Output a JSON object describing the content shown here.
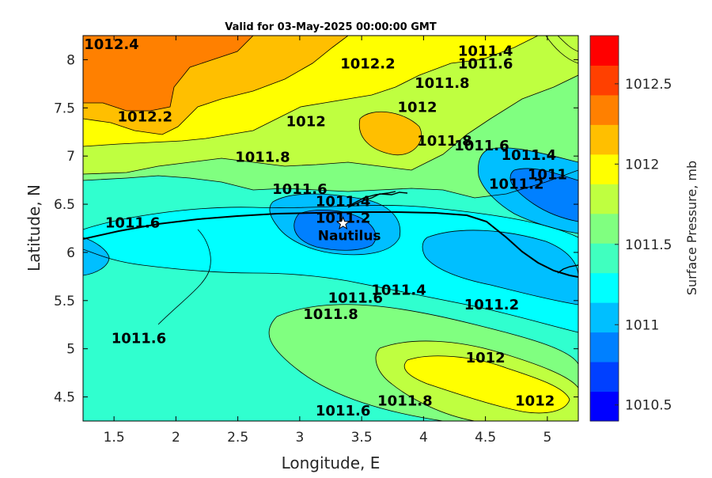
{
  "title": "Valid for 03-May-2025 00:00:00 GMT",
  "x_axis": {
    "label": "Longitude, E",
    "range": [
      1.25,
      5.25
    ],
    "ticks": [
      1.5,
      2,
      2.5,
      3,
      3.5,
      4,
      4.5,
      5
    ],
    "tick_labels": [
      "1.5",
      "2",
      "2.5",
      "3",
      "3.5",
      "4",
      "4.5",
      "5"
    ]
  },
  "y_axis": {
    "label": "Latitude, N",
    "range": [
      4.25,
      8.25
    ],
    "ticks": [
      4.5,
      5,
      5.5,
      6,
      6.5,
      7,
      7.5,
      8
    ],
    "tick_labels": [
      "4.5",
      "5",
      "5.5",
      "6",
      "6.5",
      "7",
      "7.5",
      "8"
    ]
  },
  "colorbar": {
    "label": "Surface Pressure, mb",
    "range": [
      1010.4,
      1012.8
    ],
    "ticks": [
      1010.5,
      1011,
      1011.5,
      1012,
      1012.5
    ],
    "tick_labels": [
      "1010.5",
      "1011",
      "1011.5",
      "1012",
      "1012.5"
    ],
    "colors": [
      "#0000ff",
      "#0040ff",
      "#0080ff",
      "#00bfff",
      "#00ffff",
      "#40ffbf",
      "#80ff80",
      "#bfff40",
      "#ffff00",
      "#ffbf00",
      "#ff8000",
      "#ff4000",
      "#ff0000"
    ]
  },
  "station": {
    "name": "Nautilus",
    "lon": 3.35,
    "lat": 6.3,
    "marker": "star-icon"
  },
  "contour_labels": [
    {
      "text": "1012.4",
      "lon": 1.48,
      "lat": 8.15
    },
    {
      "text": "1012.2",
      "lon": 3.55,
      "lat": 7.95
    },
    {
      "text": "1012.2",
      "lon": 1.75,
      "lat": 7.4
    },
    {
      "text": "1011.4",
      "lon": 4.5,
      "lat": 8.08
    },
    {
      "text": "1011.6",
      "lon": 4.5,
      "lat": 7.95
    },
    {
      "text": "1011.8",
      "lon": 4.15,
      "lat": 7.75
    },
    {
      "text": "1012",
      "lon": 3.05,
      "lat": 7.35
    },
    {
      "text": "1012",
      "lon": 3.95,
      "lat": 7.5
    },
    {
      "text": "1011.8",
      "lon": 2.7,
      "lat": 6.98
    },
    {
      "text": "1011.8",
      "lon": 4.17,
      "lat": 7.15
    },
    {
      "text": "1011.6",
      "lon": 4.47,
      "lat": 7.1
    },
    {
      "text": "1011.4",
      "lon": 4.85,
      "lat": 7.0
    },
    {
      "text": "1011.2",
      "lon": 4.75,
      "lat": 6.7
    },
    {
      "text": "1011",
      "lon": 5.0,
      "lat": 6.8
    },
    {
      "text": "1011.6",
      "lon": 3.0,
      "lat": 6.65
    },
    {
      "text": "1011.4",
      "lon": 3.35,
      "lat": 6.52
    },
    {
      "text": "1011.2",
      "lon": 3.35,
      "lat": 6.35
    },
    {
      "text": "1011.6",
      "lon": 1.65,
      "lat": 6.3
    },
    {
      "text": "1011.4",
      "lon": 3.8,
      "lat": 5.6
    },
    {
      "text": "1011.6",
      "lon": 3.45,
      "lat": 5.52
    },
    {
      "text": "1011.2",
      "lon": 4.55,
      "lat": 5.45
    },
    {
      "text": "1011.8",
      "lon": 3.25,
      "lat": 5.35
    },
    {
      "text": "1011.6",
      "lon": 1.7,
      "lat": 5.1
    },
    {
      "text": "1012",
      "lon": 4.5,
      "lat": 4.9
    },
    {
      "text": "1012",
      "lon": 4.9,
      "lat": 4.45
    },
    {
      "text": "1011.8",
      "lon": 3.85,
      "lat": 4.45
    },
    {
      "text": "1011.6",
      "lon": 3.35,
      "lat": 4.35
    }
  ]
}
